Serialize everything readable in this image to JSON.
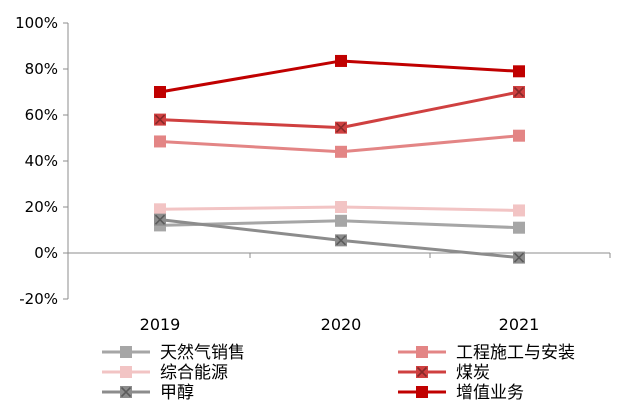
{
  "chart_data": {
    "type": "line",
    "title": "",
    "xlabel": "",
    "ylabel": "",
    "categories": [
      "2019",
      "2020",
      "2021"
    ],
    "ylim": [
      -20,
      100
    ],
    "yticks": [
      -20,
      0,
      20,
      40,
      60,
      80,
      100
    ],
    "ytick_labels": [
      "-20%",
      "0%",
      "20%",
      "40%",
      "60%",
      "80%",
      "100%"
    ],
    "grid": false,
    "legend_position": "bottom",
    "series": [
      {
        "name": "天然气销售",
        "values": [
          12,
          14,
          11
        ],
        "color": "#a6a6a6",
        "marker": "square"
      },
      {
        "name": "综合能源",
        "values": [
          19,
          20,
          18.5
        ],
        "color": "#f2c4c4",
        "marker": "square"
      },
      {
        "name": "甲醇",
        "values": [
          14.5,
          5.5,
          -2
        ],
        "color": "#8c8c8c",
        "marker": "x-square"
      },
      {
        "name": "工程施工与安装",
        "values": [
          48.5,
          44,
          51
        ],
        "color": "#e38585",
        "marker": "square"
      },
      {
        "name": "煤炭",
        "values": [
          58,
          54.5,
          70
        ],
        "color": "#cf4040",
        "marker": "x-square"
      },
      {
        "name": "增值业务",
        "values": [
          70,
          83.5,
          79
        ],
        "color": "#c00000",
        "marker": "square"
      }
    ]
  }
}
